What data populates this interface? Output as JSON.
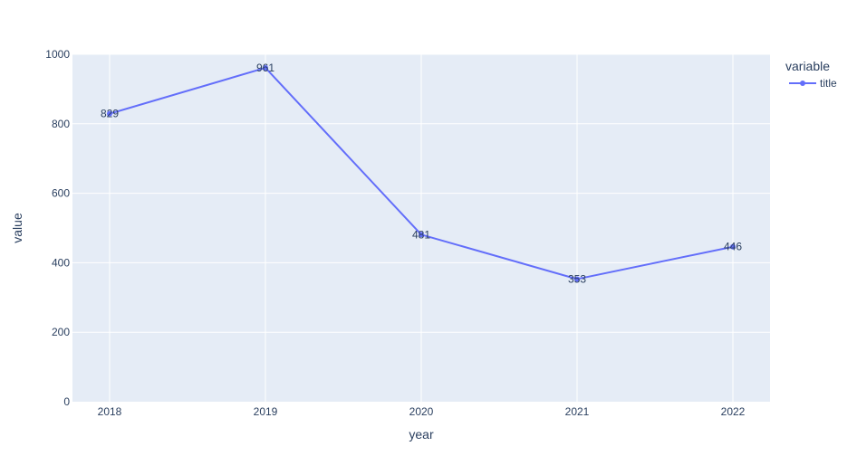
{
  "chart_data": {
    "type": "line",
    "x": [
      "2018",
      "2019",
      "2020",
      "2021",
      "2022"
    ],
    "series": [
      {
        "name": "title",
        "values": [
          829,
          961,
          481,
          353,
          446
        ]
      }
    ],
    "xlabel": "year",
    "ylabel": "value",
    "ylim": [
      0,
      1000
    ],
    "yticks": [
      0,
      200,
      400,
      600,
      800,
      1000
    ],
    "grid": true,
    "legend": {
      "title": "variable",
      "position": "top-right"
    },
    "colors": {
      "line": "#636efa",
      "plot_bg": "#e5ecf6",
      "grid": "#ffffff",
      "text": "#2a3f5f"
    },
    "markers": true,
    "data_labels": true
  }
}
